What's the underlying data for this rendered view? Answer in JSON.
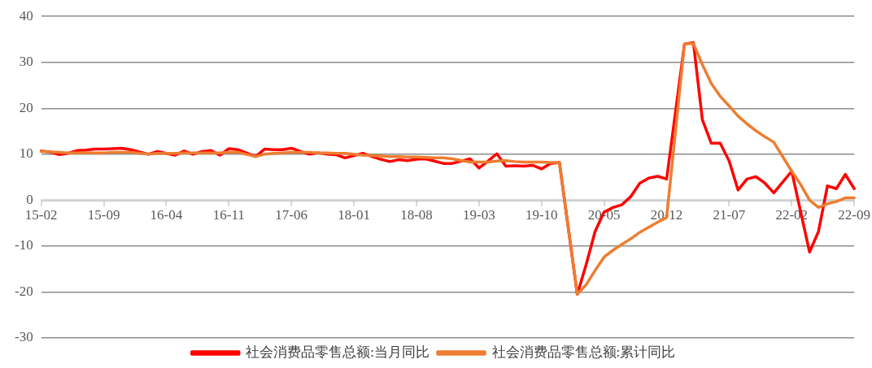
{
  "chart_data": {
    "type": "line",
    "categories": [
      "15-02",
      null,
      null,
      null,
      null,
      null,
      null,
      "15-09",
      null,
      null,
      null,
      null,
      null,
      null,
      "16-04",
      null,
      null,
      null,
      null,
      null,
      null,
      "16-11",
      null,
      null,
      null,
      null,
      null,
      null,
      "17-06",
      null,
      null,
      null,
      null,
      null,
      null,
      "18-01",
      null,
      null,
      null,
      null,
      null,
      null,
      "18-08",
      null,
      null,
      null,
      null,
      null,
      null,
      "19-03",
      null,
      null,
      null,
      null,
      null,
      null,
      "19-10",
      null,
      null,
      null,
      null,
      null,
      null,
      "20-05",
      null,
      null,
      null,
      null,
      null,
      null,
      "20-12",
      null,
      null,
      null,
      null,
      null,
      null,
      "21-07",
      null,
      null,
      null,
      null,
      null,
      null,
      "22-02",
      null,
      null,
      null,
      null,
      null,
      null,
      "22-09"
    ],
    "series": [
      {
        "name": "社会消费品零售总额:当月同比",
        "color": "#ff0000",
        "values": [
          10.7,
          10.5,
          9.9,
          10.2,
          10.8,
          10.9,
          11.1,
          11.1,
          11.2,
          11.3,
          11.0,
          null,
          10.0,
          10.6,
          10.2,
          9.8,
          10.7,
          10.0,
          10.6,
          10.8,
          9.8,
          11.2,
          11.0,
          null,
          9.5,
          11.1,
          11.0,
          11.0,
          11.3,
          10.6,
          10.0,
          10.3,
          10.0,
          9.9,
          9.2,
          null,
          10.2,
          9.5,
          8.9,
          8.4,
          8.8,
          8.6,
          8.9,
          9.0,
          8.5,
          8.0,
          8.0,
          null,
          9.0,
          7.0,
          8.5,
          10.1,
          7.4,
          7.5,
          7.4,
          7.6,
          6.8,
          8.0,
          8.2,
          null,
          -20.5,
          -14.0,
          -6.8,
          -2.6,
          -1.6,
          -1.0,
          0.8,
          3.7,
          4.8,
          5.2,
          4.6,
          null,
          34.0,
          34.3,
          17.5,
          12.4,
          12.4,
          8.5,
          2.2,
          4.6,
          5.1,
          3.7,
          1.6,
          null,
          6.3,
          -2.5,
          -11.3,
          -6.8,
          3.1,
          2.5,
          5.6,
          2.5
        ]
      },
      {
        "name": "社会消费品零售总额:累计同比",
        "color": "#ed7d31",
        "values": [
          10.6,
          10.5,
          10.4,
          10.3,
          10.3,
          10.3,
          10.3,
          10.3,
          10.4,
          10.4,
          10.4,
          null,
          10.0,
          10.2,
          10.2,
          10.2,
          10.3,
          10.3,
          10.3,
          10.3,
          10.3,
          10.4,
          10.4,
          null,
          9.5,
          10.0,
          10.2,
          10.3,
          10.4,
          10.4,
          10.4,
          10.3,
          10.3,
          10.2,
          10.2,
          null,
          9.8,
          9.7,
          9.6,
          9.5,
          9.5,
          9.4,
          9.4,
          9.3,
          9.2,
          9.2,
          9.0,
          null,
          8.3,
          8.3,
          8.3,
          8.5,
          8.6,
          8.4,
          8.3,
          8.3,
          8.3,
          8.2,
          8.2,
          null,
          -20.5,
          -18.4,
          -15.3,
          -12.4,
          -10.9,
          -9.6,
          -8.4,
          -7.0,
          -5.9,
          -4.8,
          -3.8,
          null,
          34.0,
          34.1,
          29.5,
          25.4,
          22.6,
          20.5,
          18.3,
          16.6,
          15.1,
          13.8,
          12.6,
          null,
          6.3,
          3.4,
          0.0,
          -1.6,
          -0.8,
          -0.3,
          0.5,
          0.5
        ]
      }
    ],
    "ylim": [
      -30,
      40
    ],
    "yticks": [
      -30,
      -20,
      -10,
      0,
      10,
      20,
      30,
      40
    ],
    "grid": "y",
    "legend": "bottom",
    "marker": "none",
    "line_style": "solid"
  }
}
